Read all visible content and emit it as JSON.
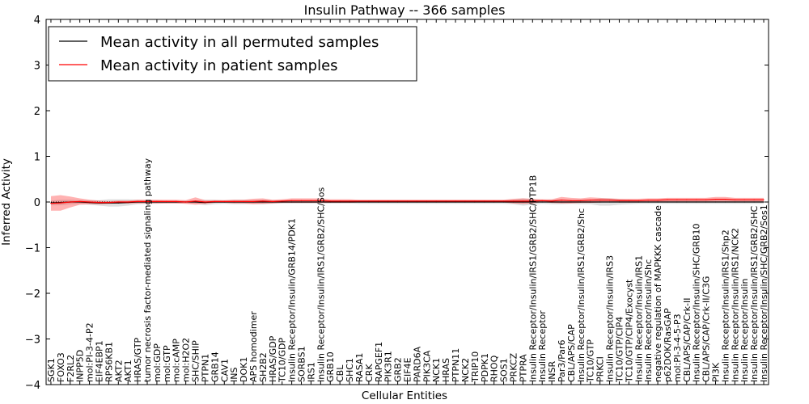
{
  "chart_data": {
    "type": "line",
    "title": "Insulin Pathway -- 366 samples",
    "xlabel": "Cellular Entities",
    "ylabel": "Inferred Activity",
    "ylim": [
      -4,
      4
    ],
    "yticks": [
      "4",
      "3",
      "2",
      "1",
      "0",
      "−1",
      "−2",
      "−3",
      "−4"
    ],
    "legend": {
      "placement": "top-left",
      "entries": [
        {
          "label": "Mean activity in all permuted samples",
          "color": "#000000"
        },
        {
          "label": "Mean activity in patient samples",
          "color": "#ff0000"
        }
      ]
    },
    "categories": [
      "SGK1",
      "FOXO3",
      "F2RL2",
      "INPP5D",
      "mol:PI-3-4-P2",
      "EIF4EBP1",
      "RPS6KB1",
      "AKT2",
      "AKT1",
      "HRAS/GTP",
      "tumor necrosis factor-mediated signaling pathway",
      "mol:GDP",
      "mol:GTP",
      "mol:cAMP",
      "mol:H2O2",
      "SHC/SHIP",
      "PTPN1",
      "GRB14",
      "CAV1",
      "INS",
      "DOK1",
      "APS homodimer",
      "SH2B2",
      "HRAS/GDP",
      "TC10/GDP",
      "Insulin Receptor/Insulin/GRB14/PDK1",
      "SORBS1",
      "IRS1",
      "Insulin Receptor/Insulin/IRS1/GRB2/SHC/Sos",
      "GRB10",
      "CBL",
      "SHC1",
      "RASA1",
      "CRK",
      "RAPGEF1",
      "PIK3R1",
      "GRB2",
      "EIF4E",
      "PARD6A",
      "PIK3CA",
      "NCK1",
      "HRAS",
      "PTPN11",
      "NCK2",
      "TRIP10",
      "PDPK1",
      "RHOQ",
      "SOS1",
      "PRKCZ",
      "PTPRA",
      "Insulin Receptor/Insulin/IRS1/GRB2/SHC/PTP1B",
      "Insulin Receptor",
      "INSR",
      "Par3/Par6",
      "CBL/APS/CAP",
      "Insulin Receptor/Insulin/IRS1/GRB2/Shc",
      "TC10/GTP",
      "PRKCI",
      "Insulin Receptor/Insulin/IRS3",
      "TC10/GTP/CIP4",
      "TC10/GTP/CIP4/Exocyst",
      "Insulin Receptor/Insulin/IRS1",
      "Insulin Receptor/Insulin/Shc",
      "negative regulation of MAPKKK cascade",
      "p62DOK/RasGAP",
      "mol:PI-3-4-5-P3",
      "CBL/APS/CAP/Crk-II",
      "Insulin Receptor/Insulin/SHC/GRB10",
      "CBL/APS/CAP/Crk-II/C3G",
      "PI3K",
      "Insulin Receptor/Insulin/IRS1/Shp2",
      "Insulin Receptor/Insulin/IRS1/NCK2",
      "Insulin Receptor/Insulin",
      "Insulin Receptor/Insulin/IRS1/GRB2/SHC",
      "Insulin Receptor/Insulin/SHC/GRB2/Sos1"
    ],
    "series": [
      {
        "name": "Mean activity in all permuted samples",
        "color": "#000000",
        "values": [
          -0.02,
          -0.01,
          0.0,
          0.0,
          -0.01,
          -0.02,
          -0.02,
          -0.02,
          -0.01,
          0.0,
          0.0,
          0.0,
          0.0,
          0.0,
          0.0,
          0.0,
          -0.01,
          0.0,
          0.0,
          0.0,
          0.0,
          0.0,
          0.0,
          0.0,
          0.0,
          0.0,
          0.0,
          0.0,
          0.0,
          0.0,
          0.0,
          0.0,
          0.0,
          0.0,
          0.0,
          0.0,
          0.0,
          0.0,
          0.0,
          0.0,
          0.0,
          0.0,
          0.0,
          0.0,
          0.0,
          0.0,
          0.0,
          0.0,
          0.0,
          0.0,
          0.0,
          0.0,
          0.0,
          0.0,
          0.0,
          0.0,
          0.0,
          0.0,
          0.0,
          0.0,
          0.0,
          0.0,
          0.0,
          0.0,
          0.0,
          0.0,
          0.0,
          0.0,
          0.0,
          0.0,
          0.0,
          0.0,
          0.0,
          0.0,
          0.0
        ],
        "spread": [
          0.05,
          0.06,
          0.05,
          0.04,
          0.05,
          0.06,
          0.08,
          0.08,
          0.07,
          0.05,
          0.04,
          0.04,
          0.03,
          0.03,
          0.03,
          0.03,
          0.06,
          0.05,
          0.04,
          0.05,
          0.05,
          0.04,
          0.05,
          0.04,
          0.03,
          0.03,
          0.03,
          0.03,
          0.03,
          0.03,
          0.03,
          0.03,
          0.04,
          0.04,
          0.04,
          0.04,
          0.04,
          0.04,
          0.04,
          0.04,
          0.04,
          0.04,
          0.04,
          0.04,
          0.04,
          0.04,
          0.04,
          0.04,
          0.05,
          0.08,
          0.06,
          0.04,
          0.05,
          0.05,
          0.04,
          0.05,
          0.05,
          0.08,
          0.08,
          0.06,
          0.05,
          0.04,
          0.04,
          0.04,
          0.04,
          0.04,
          0.04,
          0.04,
          0.04,
          0.04,
          0.04,
          0.04,
          0.04,
          0.04,
          0.04
        ]
      },
      {
        "name": "Mean activity in patient samples",
        "color": "#ff0000",
        "values": [
          -0.03,
          -0.02,
          0.0,
          0.01,
          0.0,
          -0.01,
          -0.01,
          0.0,
          0.0,
          0.01,
          0.01,
          0.01,
          0.01,
          0.01,
          0.0,
          0.02,
          0.0,
          0.01,
          0.01,
          0.01,
          0.01,
          0.01,
          0.02,
          0.01,
          0.02,
          0.03,
          0.03,
          0.03,
          0.03,
          0.02,
          0.02,
          0.02,
          0.02,
          0.02,
          0.02,
          0.02,
          0.02,
          0.02,
          0.02,
          0.02,
          0.02,
          0.02,
          0.02,
          0.02,
          0.02,
          0.02,
          0.02,
          0.02,
          0.02,
          0.02,
          0.02,
          0.03,
          0.02,
          0.04,
          0.03,
          0.03,
          0.04,
          0.04,
          0.04,
          0.03,
          0.03,
          0.03,
          0.04,
          0.04,
          0.05,
          0.05,
          0.05,
          0.05,
          0.05,
          0.06,
          0.06,
          0.05,
          0.05,
          0.05,
          0.05
        ],
        "spread": [
          0.16,
          0.17,
          0.12,
          0.07,
          0.05,
          0.04,
          0.03,
          0.03,
          0.03,
          0.04,
          0.04,
          0.04,
          0.04,
          0.04,
          0.04,
          0.08,
          0.04,
          0.03,
          0.03,
          0.04,
          0.04,
          0.06,
          0.06,
          0.04,
          0.04,
          0.05,
          0.05,
          0.05,
          0.05,
          0.04,
          0.04,
          0.04,
          0.03,
          0.03,
          0.03,
          0.03,
          0.03,
          0.03,
          0.03,
          0.03,
          0.03,
          0.03,
          0.03,
          0.03,
          0.03,
          0.03,
          0.03,
          0.03,
          0.05,
          0.06,
          0.05,
          0.03,
          0.04,
          0.07,
          0.06,
          0.05,
          0.06,
          0.05,
          0.04,
          0.04,
          0.04,
          0.04,
          0.04,
          0.04,
          0.04,
          0.04,
          0.04,
          0.04,
          0.04,
          0.05,
          0.05,
          0.04,
          0.04,
          0.04,
          0.04
        ]
      }
    ],
    "reference_line": {
      "y": 0,
      "style": "dotted"
    }
  }
}
